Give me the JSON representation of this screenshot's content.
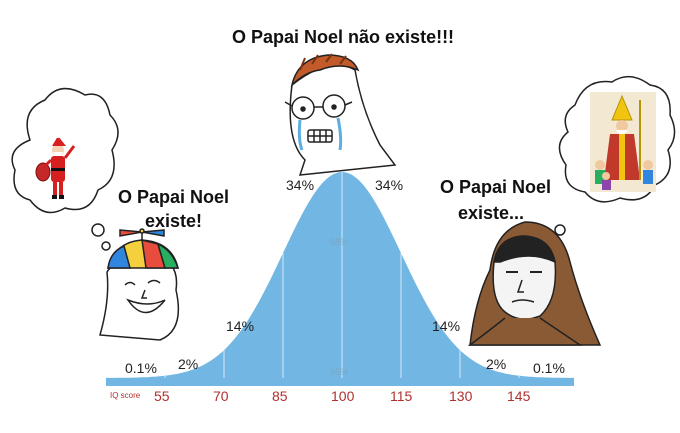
{
  "captions": {
    "top": "O Papai Noel não existe!!!",
    "left_line1": "O Papai Noel",
    "left_line2": "existe!",
    "right_line1": "O Papai Noel",
    "right_line2": "existe..."
  },
  "chart_data": {
    "type": "area",
    "xlabel": "IQ score",
    "ticks": [
      "55",
      "70",
      "85",
      "100",
      "115",
      "130",
      "145"
    ],
    "segments_left": [
      "0.1%",
      "2%",
      "14%",
      "34%"
    ],
    "segments_right": [
      "34%",
      "14%",
      "2%",
      "0.1%"
    ],
    "inner_labels": [
      "68%",
      "95%"
    ],
    "mean": 100,
    "sd": 15
  },
  "colors": {
    "curve_fill": "#72b7e3",
    "axis_bar": "#72b7e3",
    "tick_text": "#b03030"
  }
}
